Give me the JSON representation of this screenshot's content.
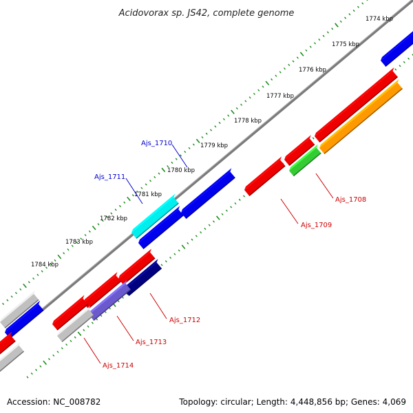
{
  "title": "Acidovorax sp. JS42, complete genome",
  "footer": {
    "accession": "Accession: NC_008782",
    "topology": "Topology: circular; Length: 4,448,856 bp; Genes: 4,069"
  },
  "colors": {
    "backbone": "#808080",
    "ticks": "#1a8a1a",
    "label_blue": "#0000cc",
    "label_red": "#cc0000"
  },
  "kbp_labels": [
    "1774 kbp",
    "1775 kbp",
    "1776 kbp",
    "1777 kbp",
    "1778 kbp",
    "1779 kbp",
    "1780 kbp",
    "1781 kbp",
    "1782 kbp",
    "1783 kbp",
    "1784 kbp"
  ],
  "gene_labels": [
    "Ajs_1710",
    "Ajs_1711",
    "Ajs_1708",
    "Ajs_1709",
    "Ajs_1712",
    "Ajs_1713",
    "Ajs_1714"
  ],
  "features": [
    {
      "name": "gene-1774-blue",
      "color": "#0000ee"
    },
    {
      "name": "gene-1708-red",
      "color": "#ee0000"
    },
    {
      "name": "gene-1708-orange",
      "color": "#ff9900"
    },
    {
      "name": "gene-red-small",
      "color": "#ee0000"
    },
    {
      "name": "gene-green",
      "color": "#33cc33"
    },
    {
      "name": "gene-1709-red",
      "color": "#ee0000"
    },
    {
      "name": "gene-1710-blue",
      "color": "#0000ee"
    },
    {
      "name": "gene-1711-cyan",
      "color": "#00eeee"
    },
    {
      "name": "gene-blue-below-cyan",
      "color": "#0000ee"
    },
    {
      "name": "gene-red-top",
      "color": "#ee0000"
    },
    {
      "name": "gene-1712-navy",
      "color": "#000080"
    },
    {
      "name": "gene-red-mid",
      "color": "#ee0000"
    },
    {
      "name": "gene-1713-purple",
      "color": "#6a5acd"
    },
    {
      "name": "gene-red-lower",
      "color": "#ee0000"
    },
    {
      "name": "gene-1714-grey",
      "color": "#c0c0c0"
    },
    {
      "name": "gene-grey-left",
      "color": "#c0c0c0"
    },
    {
      "name": "gene-blue-left",
      "color": "#0000ee"
    },
    {
      "name": "gene-red-edge",
      "color": "#ee0000"
    },
    {
      "name": "gene-grey-edge",
      "color": "#c0c0c0"
    }
  ]
}
